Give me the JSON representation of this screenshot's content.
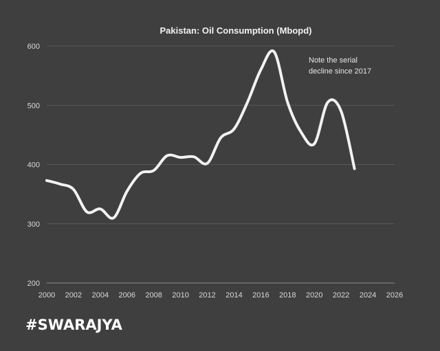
{
  "chart_data": {
    "type": "line",
    "title": "Pakistan: Oil Consumption (Mbopd)",
    "xlabel": "",
    "ylabel": "",
    "xlim": [
      2000,
      2026
    ],
    "ylim": [
      200,
      600
    ],
    "x_ticks": [
      2000,
      2002,
      2004,
      2006,
      2008,
      2010,
      2012,
      2014,
      2016,
      2018,
      2020,
      2022,
      2024,
      2026
    ],
    "y_ticks": [
      200,
      300,
      400,
      500,
      600
    ],
    "grid": true,
    "series": [
      {
        "color": "#f2f2f2",
        "x": [
          2000,
          2001,
          2002,
          2003,
          2004,
          2005,
          2006,
          2007,
          2008,
          2009,
          2010,
          2011,
          2012,
          2013,
          2014,
          2015,
          2016,
          2017,
          2018,
          2019,
          2020,
          2021,
          2022,
          2023
        ],
        "y": [
          373,
          367,
          358,
          320,
          325,
          310,
          355,
          385,
          390,
          415,
          412,
          413,
          402,
          445,
          460,
          505,
          560,
          590,
          505,
          455,
          435,
          505,
          490,
          393
        ]
      }
    ],
    "annotations": [
      "Note the serial",
      "decline since 2017"
    ]
  },
  "brand": "#SWARAJYA"
}
